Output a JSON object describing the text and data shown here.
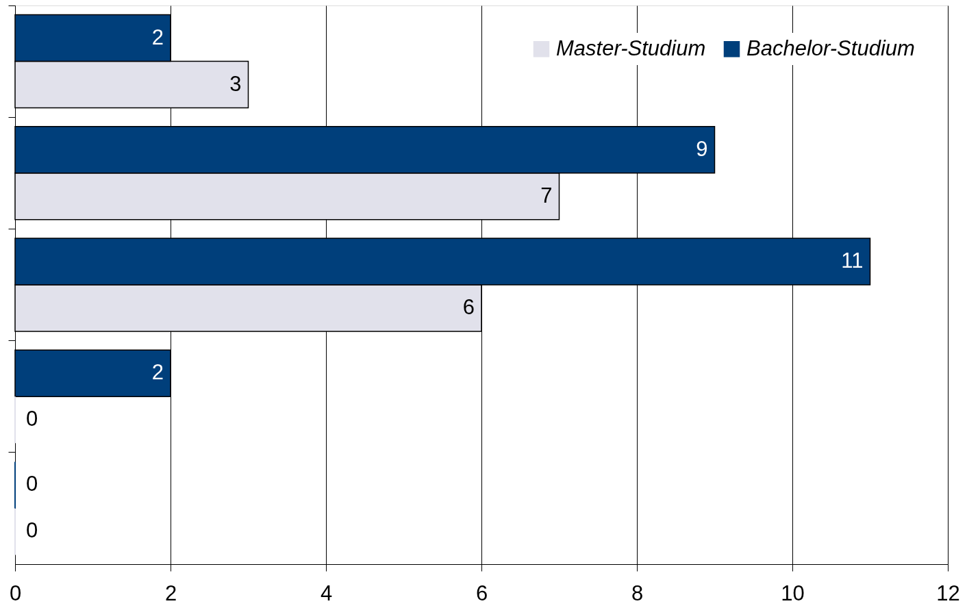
{
  "chart_data": {
    "type": "bar",
    "orientation": "horizontal",
    "categories": [
      null,
      null,
      null,
      null,
      null
    ],
    "series": [
      {
        "name": "Master-Studium",
        "color": "#e1e1eb",
        "values": [
          3,
          7,
          6,
          0,
          0
        ]
      },
      {
        "name": "Bachelor-Studium",
        "color": "#003f7b",
        "values": [
          2,
          9,
          11,
          2,
          0
        ]
      }
    ],
    "xlim": [
      0,
      12
    ],
    "xticks": [
      0,
      2,
      4,
      6,
      8,
      10,
      12
    ],
    "grid": "x",
    "legend": "top right",
    "data_labels": true,
    "tick_labels": "x"
  }
}
